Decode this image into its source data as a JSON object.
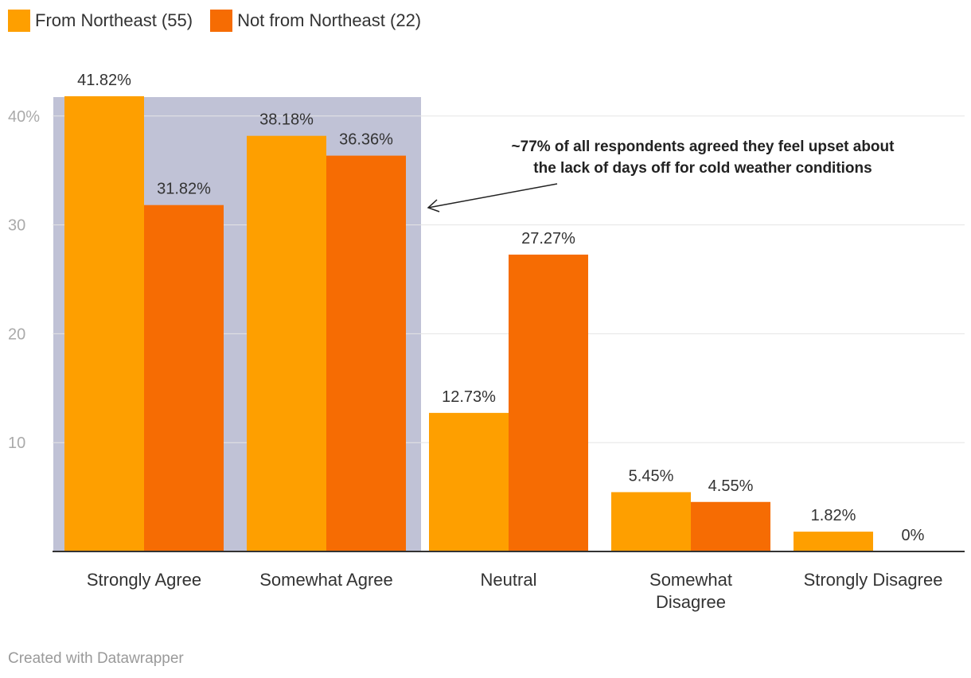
{
  "colors": {
    "series1": "#fe9f00",
    "series2": "#f66c03",
    "highlight": "#c0c2d6",
    "grid": "#e5e5e5",
    "axis": "#333333"
  },
  "legend": [
    {
      "label": "From Northeast (55)",
      "color": "#fe9f00"
    },
    {
      "label": "Not from Northeast (22)",
      "color": "#f66c03"
    }
  ],
  "chart_data": {
    "type": "bar",
    "categories": [
      "Strongly Agree",
      "Somewhat Agree",
      "Neutral",
      "Somewhat Disagree",
      "Strongly Disagree"
    ],
    "series": [
      {
        "name": "From Northeast (55)",
        "values": [
          41.82,
          38.18,
          12.73,
          5.45,
          1.82
        ],
        "labels": [
          "41.82%",
          "38.18%",
          "12.73%",
          "5.45%",
          "1.82%"
        ]
      },
      {
        "name": "Not from Northeast (22)",
        "values": [
          31.82,
          36.36,
          27.27,
          4.55,
          0
        ],
        "labels": [
          "31.82%",
          "36.36%",
          "27.27%",
          "4.55%",
          "0%"
        ]
      }
    ],
    "yticks": [
      10,
      20,
      30,
      40
    ],
    "ytick_labels": [
      "10",
      "20",
      "30",
      "40%"
    ],
    "ylim": [
      0,
      40
    ],
    "grid": true,
    "highlight_categories": [
      "Strongly Agree",
      "Somewhat Agree"
    ],
    "annotation": {
      "lines": [
        "~77% of all respondents agreed they feel upset about",
        "the lack of days off for cold weather conditions"
      ]
    }
  },
  "footer": "Created with Datawrapper"
}
